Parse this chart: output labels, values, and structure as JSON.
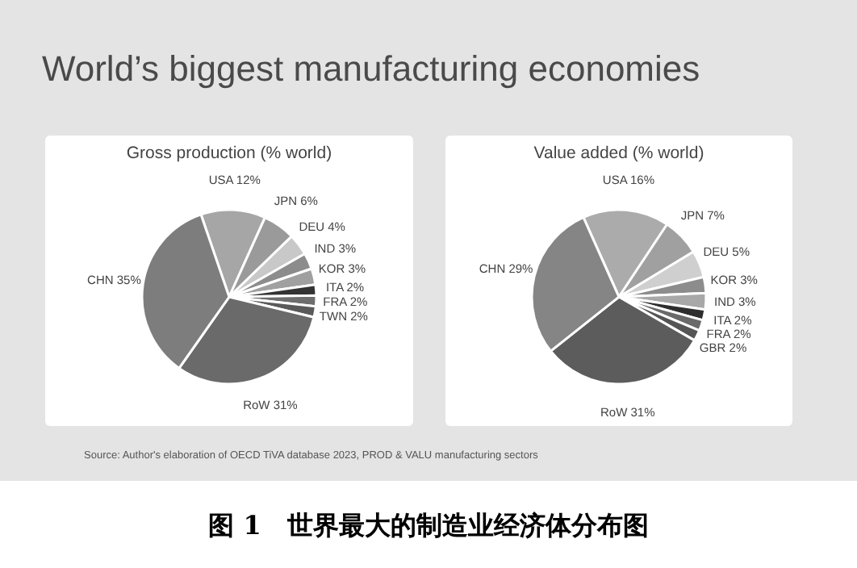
{
  "chart_data": [
    {
      "type": "pie",
      "title": "World’s biggest manufacturing economies",
      "subtitle": "Gross production  (% world)",
      "categories": [
        "USA",
        "JPN",
        "DEU",
        "IND",
        "KOR",
        "ITA",
        "FRA",
        "TWN",
        "RoW",
        "CHN"
      ],
      "values": [
        12,
        6,
        4,
        3,
        3,
        2,
        2,
        2,
        31,
        35
      ],
      "value_labels": [
        "12%",
        "6%",
        "4%",
        "3%",
        "3%",
        "2%",
        "2%",
        "2%",
        "31%",
        "35%"
      ],
      "colors": [
        "#a6a6a6",
        "#9a9a9a",
        "#c8c8c8",
        "#8c8c8c",
        "#a0a0a0",
        "#333333",
        "#6e6e6e",
        "#5a5a5a",
        "#6a6a6a",
        "#7d7d7d"
      ]
    },
    {
      "type": "pie",
      "title": "Value added (% world)",
      "categories": [
        "USA",
        "JPN",
        "DEU",
        "KOR",
        "IND",
        "ITA",
        "FRA",
        "GBR",
        "RoW",
        "CHN"
      ],
      "values": [
        16,
        7,
        5,
        3,
        3,
        2,
        2,
        2,
        31,
        29
      ],
      "value_labels": [
        "16%",
        "7%",
        "5%",
        "3%",
        "3%",
        "2%",
        "2%",
        "2%",
        "31%",
        "29%"
      ],
      "colors": [
        "#ababab",
        "#a0a0a0",
        "#cfcfcf",
        "#8c8c8c",
        "#a8a8a8",
        "#2e2e2e",
        "#6a6a6a",
        "#555555",
        "#5c5c5c",
        "#858585"
      ],
      "annotations": [
        "Source: Author's elaboration of OECD   TiVA database 2023, PROD & VALU manufacturing sectors",
        "图 1　世界最大的制造业经济体分布图"
      ]
    }
  ]
}
